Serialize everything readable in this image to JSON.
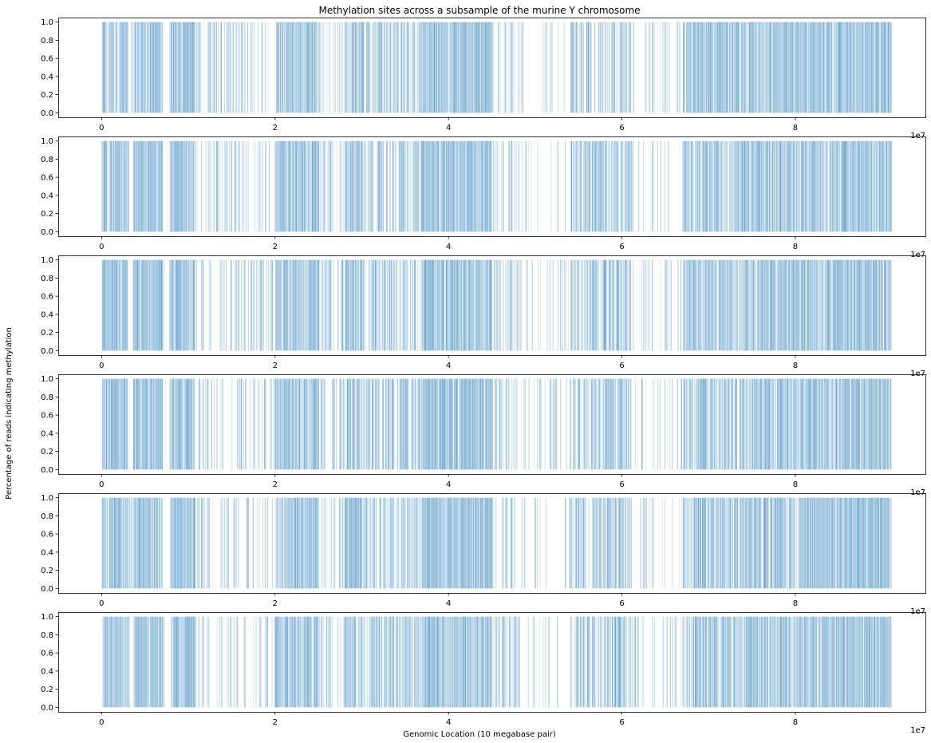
{
  "chart_data": {
    "type": "bar",
    "title": "Methylation sites across a subsample of the murine Y chromosome",
    "xlabel": "Genomic Location (10 megabase pair)",
    "ylabel": "Percentage of reads indicating methylation",
    "x_offset_label": "1e7",
    "xlim": [
      -5000000,
      95000000
    ],
    "ylim": [
      -0.05,
      1.05
    ],
    "x_ticks": [
      0,
      20000000,
      40000000,
      60000000,
      80000000
    ],
    "x_tick_labels": [
      "0",
      "2",
      "4",
      "6",
      "8"
    ],
    "y_ticks": [
      0.0,
      0.2,
      0.4,
      0.6,
      0.8,
      1.0
    ],
    "y_tick_labels": [
      "0.0",
      "0.2",
      "0.4",
      "0.6",
      "0.8",
      "1.0"
    ],
    "bar_color": "#1f77b4",
    "grid": false,
    "panel_count": 6,
    "site_density_profile": [
      {
        "start": 0,
        "end": 3000000,
        "density": 0.85
      },
      {
        "start": 3000000,
        "end": 3600000,
        "density": 0.05
      },
      {
        "start": 3600000,
        "end": 7000000,
        "density": 0.95
      },
      {
        "start": 7000000,
        "end": 7800000,
        "density": 0.08
      },
      {
        "start": 7800000,
        "end": 10700000,
        "density": 0.9
      },
      {
        "start": 10700000,
        "end": 20000000,
        "density": 0.25
      },
      {
        "start": 20000000,
        "end": 25000000,
        "density": 0.85
      },
      {
        "start": 25000000,
        "end": 28000000,
        "density": 0.3
      },
      {
        "start": 28000000,
        "end": 30000000,
        "density": 0.8
      },
      {
        "start": 30000000,
        "end": 37000000,
        "density": 0.55
      },
      {
        "start": 37000000,
        "end": 45000000,
        "density": 0.92
      },
      {
        "start": 45000000,
        "end": 48000000,
        "density": 0.3
      },
      {
        "start": 48000000,
        "end": 54000000,
        "density": 0.12
      },
      {
        "start": 54000000,
        "end": 61000000,
        "density": 0.6
      },
      {
        "start": 61000000,
        "end": 67000000,
        "density": 0.15
      },
      {
        "start": 67000000,
        "end": 75000000,
        "density": 0.72
      },
      {
        "start": 75000000,
        "end": 85000000,
        "density": 0.85
      },
      {
        "start": 85000000,
        "end": 91000000,
        "density": 0.95
      }
    ]
  }
}
